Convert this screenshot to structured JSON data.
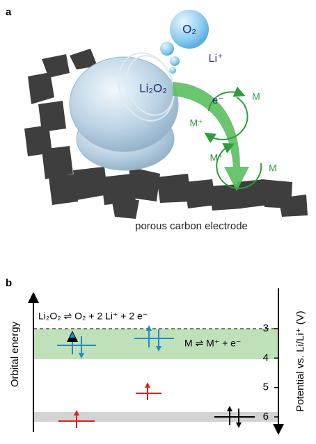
{
  "panel_a": {
    "label": "a",
    "oxygen": "O₂",
    "lithium_ion": "Li⁺",
    "peroxide": "Li₂O₂",
    "electron": "e⁻",
    "mediator_top": "M",
    "mediator_ion_top": "M⁺",
    "mediator_ion_bottom": "M⁺",
    "mediator_bottom": "M",
    "caption": "porous carbon electrode"
  },
  "panel_b": {
    "label": "b",
    "reaction_peroxide": "Li₂O₂ ⇌ O₂ + 2 Li⁺ + 2 e⁻",
    "reaction_mediator": "M ⇌ M⁺ + e⁻",
    "left_axis_label": "Orbital energy",
    "right_axis_label": "Potential vs. Li/Li⁺ (V)",
    "right_ticks": [
      3,
      4,
      5,
      6
    ]
  }
}
